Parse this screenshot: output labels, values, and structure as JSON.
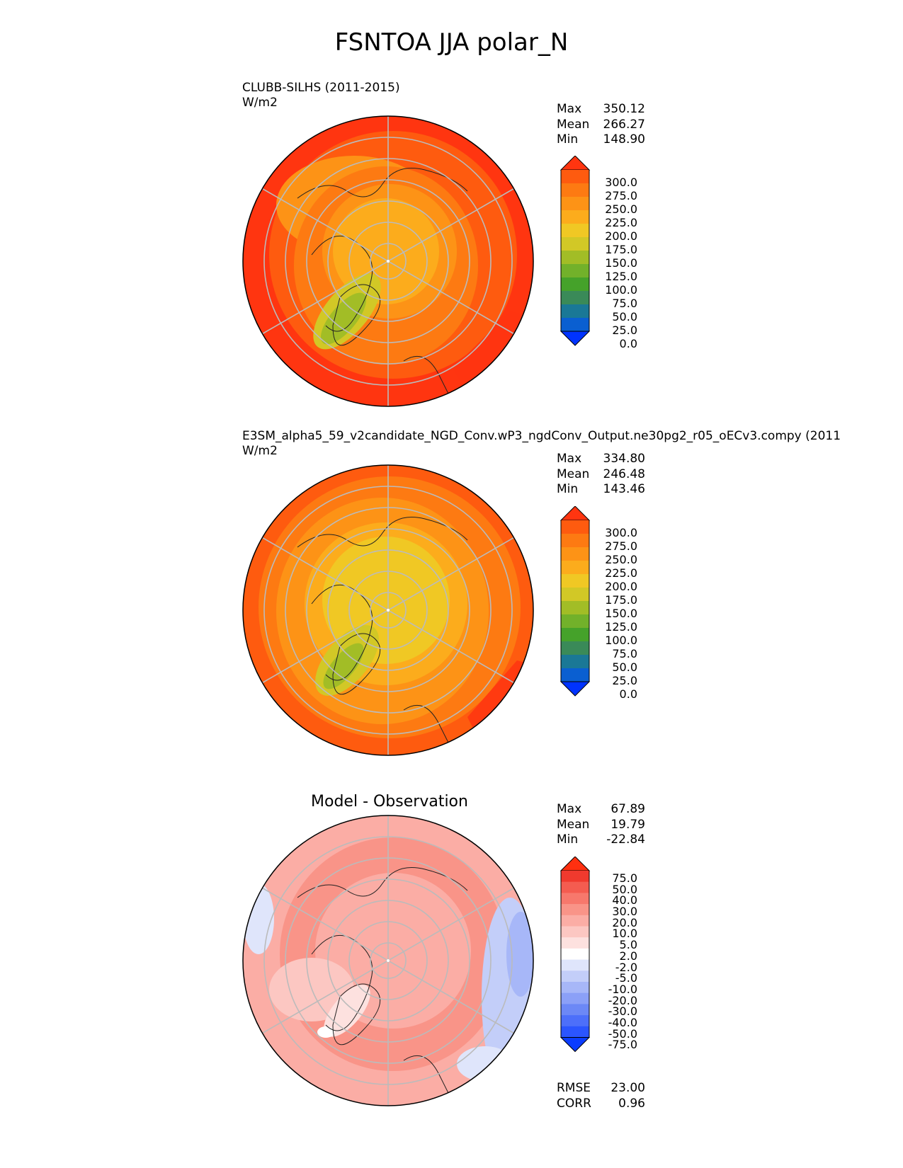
{
  "title": "FSNTOA JJA polar_N",
  "panels": [
    {
      "id": "test",
      "subtitle": "CLUBB-SILHS (2011-2015)",
      "units": "W/m2",
      "stats": [
        {
          "label": "Max",
          "value": "350.12"
        },
        {
          "label": "Mean",
          "value": "266.27"
        },
        {
          "label": "Min",
          "value": "148.90"
        }
      ],
      "colorbar": {
        "ticks": [
          "300.0",
          "275.0",
          "250.0",
          "225.0",
          "200.0",
          "175.0",
          "150.0",
          "125.0",
          "100.0",
          "75.0",
          "50.0",
          "25.0",
          "0.0"
        ],
        "colors": [
          "#0033ff",
          "#0a5fd1",
          "#1a7896",
          "#3a8a58",
          "#45a22a",
          "#72b12a",
          "#a2bd26",
          "#d2c826",
          "#f0c824",
          "#fcac1c",
          "#fd9316",
          "#fd7a12",
          "#fe5b0f",
          "#ff3510"
        ]
      }
    },
    {
      "id": "reference",
      "subtitle": "E3SM_alpha5_59_v2candidate_NGD_Conv.wP3_ngdConv_Output.ne30pg2_r05_oECv3.compy (2011",
      "units": "W/m2",
      "stats": [
        {
          "label": "Max",
          "value": "334.80"
        },
        {
          "label": "Mean",
          "value": "246.48"
        },
        {
          "label": "Min",
          "value": "143.46"
        }
      ],
      "colorbar": {
        "ticks": [
          "300.0",
          "275.0",
          "250.0",
          "225.0",
          "200.0",
          "175.0",
          "150.0",
          "125.0",
          "100.0",
          "75.0",
          "50.0",
          "25.0",
          "0.0"
        ],
        "colors": [
          "#0033ff",
          "#0a5fd1",
          "#1a7896",
          "#3a8a58",
          "#45a22a",
          "#72b12a",
          "#a2bd26",
          "#d2c826",
          "#f0c824",
          "#fcac1c",
          "#fd9316",
          "#fd7a12",
          "#fe5b0f",
          "#ff3510"
        ]
      }
    },
    {
      "id": "diff",
      "subtitle": "Model - Observation",
      "units": "",
      "stats": [
        {
          "label": "Max",
          "value": "67.89"
        },
        {
          "label": "Mean",
          "value": "19.79"
        },
        {
          "label": "Min",
          "value": "-22.84"
        }
      ],
      "colorbar": {
        "ticks": [
          "75.0",
          "50.0",
          "40.0",
          "30.0",
          "20.0",
          "10.0",
          "5.0",
          "2.0",
          "-2.0",
          "-5.0",
          "-10.0",
          "-20.0",
          "-30.0",
          "-40.0",
          "-50.0",
          "-75.0"
        ],
        "colors": [
          "#0a3cff",
          "#2b55ff",
          "#4d6ffa",
          "#6c88f6",
          "#8ba0f7",
          "#a7b7f8",
          "#c3cef9",
          "#dfe5fb",
          "#ffffff",
          "#fde1df",
          "#fcc7c2",
          "#fbada5",
          "#f99488",
          "#f7786c",
          "#f45c50",
          "#f03a2e",
          "#ff3010"
        ]
      },
      "metrics": [
        {
          "label": "RMSE",
          "value": "23.00"
        },
        {
          "label": "CORR",
          "value": "0.96"
        }
      ]
    }
  ]
}
